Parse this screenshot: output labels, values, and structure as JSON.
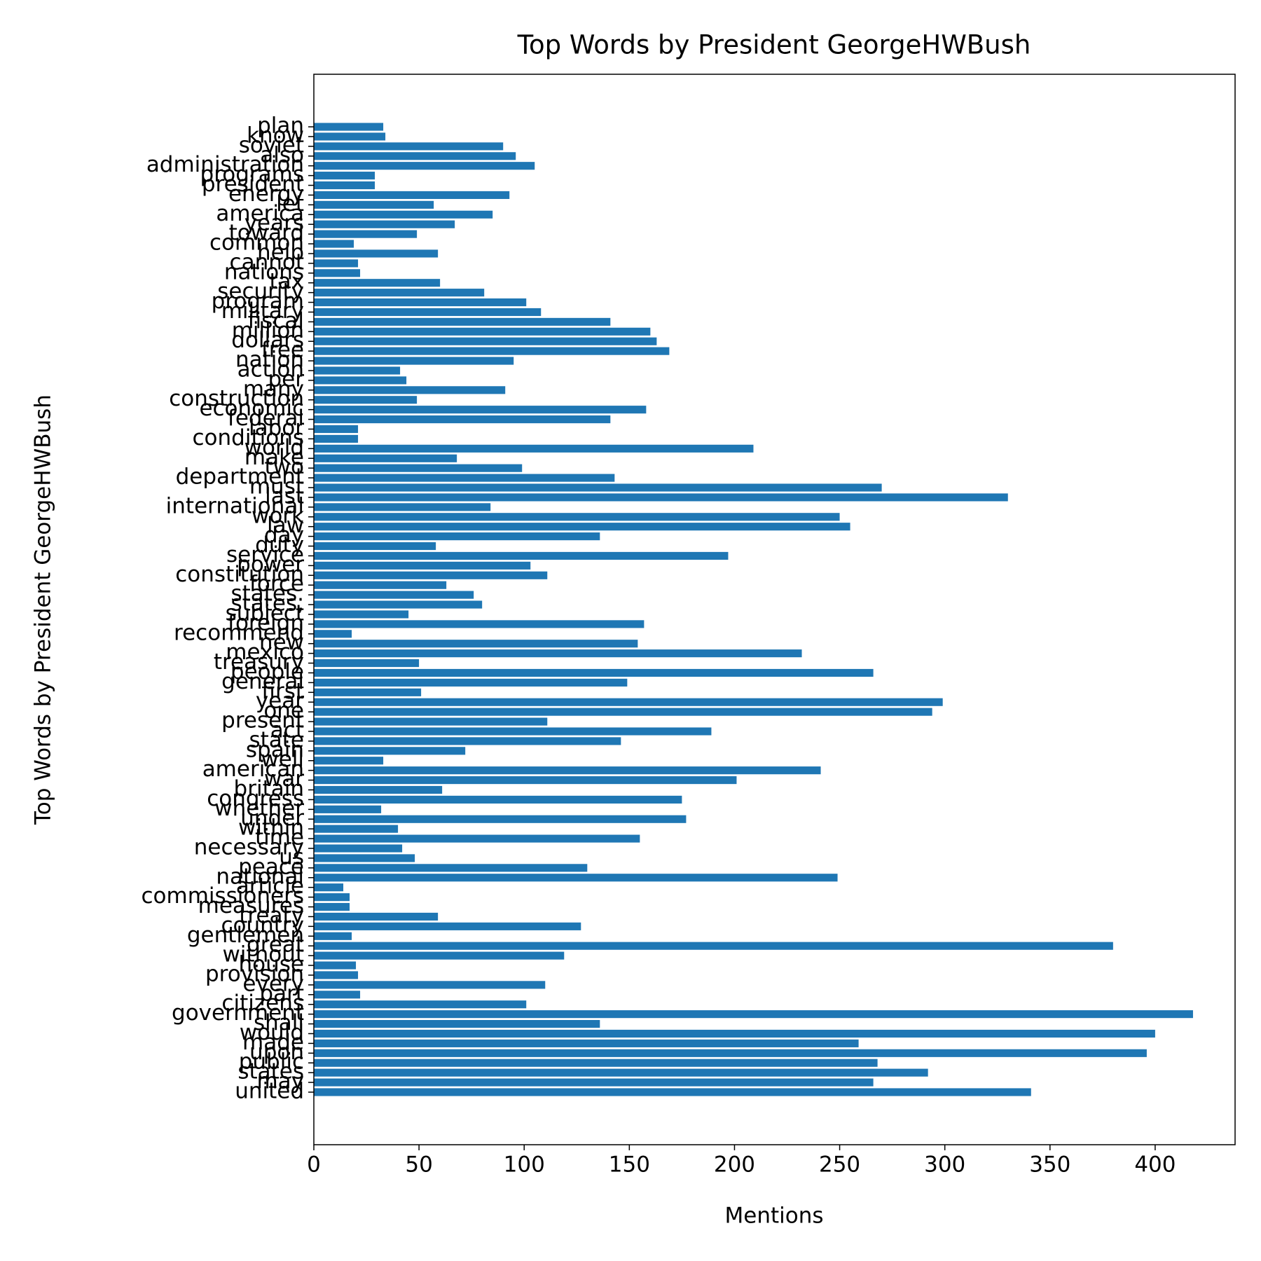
{
  "chart_data": {
    "type": "barh",
    "title": "Top Words by President GeorgeHWBush",
    "xlabel": "Mentions",
    "ylabel": "Top Words by President GeorgeHWBush",
    "color": "#1f77b4",
    "categories": [
      "united",
      "may",
      "states",
      "public",
      "upon",
      "made",
      "would",
      "shall",
      "government",
      "citizens",
      "part",
      "every",
      "provision",
      "house",
      "without",
      "great",
      "gentlemen",
      "country",
      "treaty",
      "measures",
      "commissioners",
      "article",
      "national",
      "peace",
      "us",
      "necessary",
      "time",
      "within",
      "under",
      "whether",
      "congress",
      "britain",
      "war",
      "american",
      "well",
      "spain",
      "state",
      "act",
      "present",
      "one",
      "year",
      "first",
      "general",
      "people",
      "treasury",
      "mexico",
      "new",
      "recommend",
      "foreign",
      "subject",
      "states,",
      "states.",
      "force",
      "constitution",
      "power",
      "service",
      "duty",
      "day",
      "law",
      "work",
      "international",
      "last",
      "must",
      "department",
      "two",
      "make",
      "world",
      "conditions",
      "labor",
      "federal",
      "economic",
      "construction",
      "many",
      "per",
      "action",
      "nation",
      "free",
      "dollars",
      "million",
      "fiscal",
      "military",
      "program",
      "security",
      "tax",
      "nations",
      "cannot",
      "help",
      "common",
      "toward",
      "years",
      "america",
      "let",
      "energy",
      "president",
      "programs",
      "administration",
      "also",
      "soviet",
      "know",
      "plan"
    ],
    "values": [
      341,
      266,
      292,
      268,
      396,
      259,
      400,
      136,
      418,
      101,
      22,
      110,
      21,
      20,
      119,
      380,
      18,
      127,
      59,
      17,
      17,
      14,
      249,
      130,
      48,
      42,
      155,
      40,
      177,
      32,
      175,
      61,
      201,
      241,
      33,
      72,
      146,
      189,
      111,
      294,
      299,
      51,
      149,
      266,
      50,
      232,
      154,
      18,
      157,
      45,
      80,
      76,
      63,
      111,
      103,
      197,
      58,
      136,
      255,
      250,
      84,
      330,
      270,
      143,
      99,
      68,
      209,
      21,
      21,
      141,
      158,
      49,
      91,
      44,
      41,
      95,
      169,
      163,
      160,
      141,
      108,
      101,
      81,
      60,
      22,
      21,
      59,
      19,
      49,
      67,
      85,
      57,
      93,
      29,
      29,
      105,
      96,
      90,
      34,
      33
    ],
    "xlim": [
      0,
      438
    ],
    "xticks": [
      0,
      50,
      100,
      150,
      200,
      250,
      300,
      350,
      400
    ]
  }
}
